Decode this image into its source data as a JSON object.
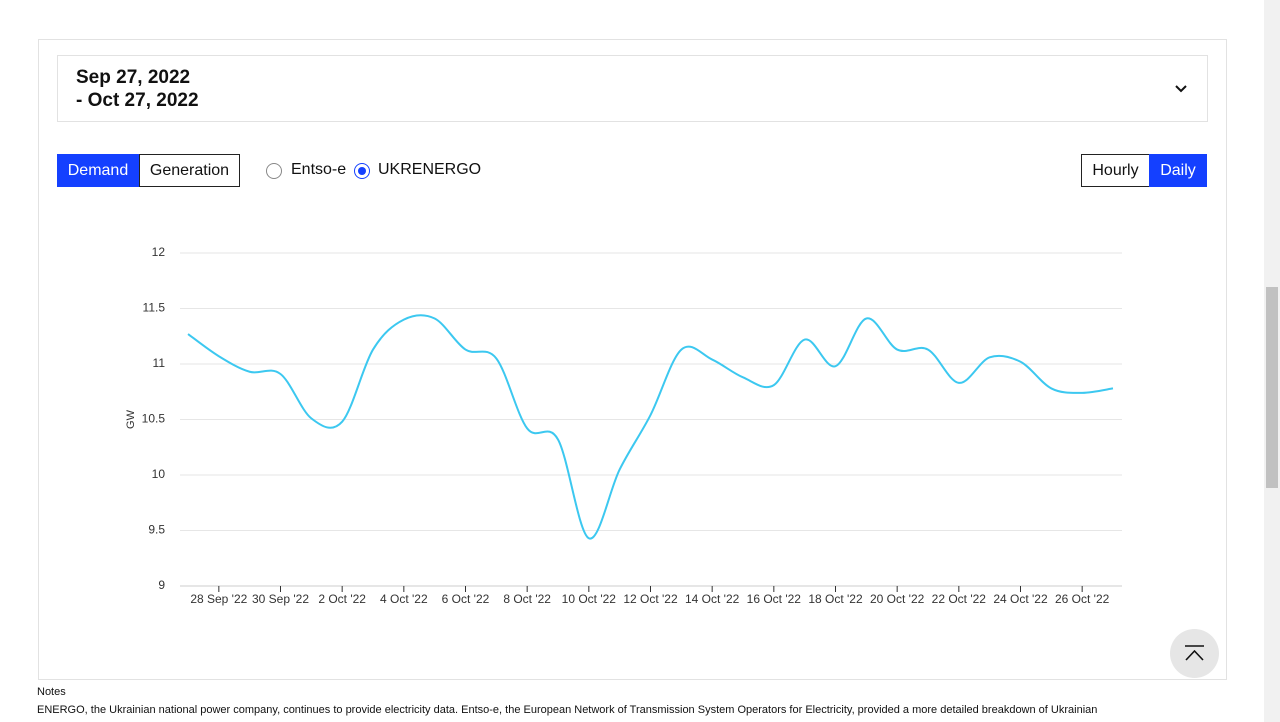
{
  "date_range": {
    "start": "Sep 27, 2022",
    "end": "- Oct 27, 2022"
  },
  "controls": {
    "metric": [
      "Demand",
      "Generation"
    ],
    "source": [
      "Entso-e",
      "UKRENERGO"
    ],
    "resolution": [
      "Hourly",
      "Daily"
    ]
  },
  "notes": {
    "heading": "Notes",
    "text": "ENERGO, the Ukrainian national power company, continues to provide electricity data. Entso-e, the European Network of Transmission System Operators for Electricity, provided a more detailed breakdown of Ukrainian"
  },
  "chart_data": {
    "type": "line",
    "y_label": "GW",
    "categories": [
      null,
      "28 Sep '22",
      null,
      "30 Sep '22",
      null,
      "2 Oct '22",
      null,
      "4 Oct '22",
      null,
      "6 Oct '22",
      null,
      "8 Oct '22",
      null,
      "10 Oct '22",
      null,
      "12 Oct '22",
      null,
      "14 Oct '22",
      null,
      "16 Oct '22",
      null,
      "18 Oct '22",
      null,
      "20 Oct '22",
      null,
      "22 Oct '22",
      null,
      "24 Oct '22",
      null,
      "26 Oct '22",
      null
    ],
    "series": [
      {
        "name": "Demand",
        "color": "#3cc8f0",
        "values": [
          11.27,
          11.07,
          10.93,
          10.91,
          10.51,
          10.48,
          11.13,
          11.4,
          11.41,
          11.13,
          11.05,
          10.42,
          10.32,
          9.43,
          10.05,
          10.54,
          11.13,
          11.04,
          10.88,
          10.81,
          11.22,
          10.98,
          11.41,
          11.13,
          11.13,
          10.83,
          11.06,
          11.02,
          10.78,
          10.74,
          10.78
        ]
      }
    ],
    "ylim": [
      9,
      12
    ],
    "yticks": [
      9,
      9.5,
      10,
      10.5,
      11,
      11.5,
      12
    ],
    "grid": true
  }
}
